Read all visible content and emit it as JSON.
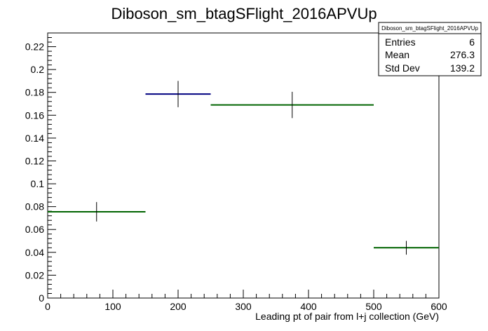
{
  "chart_data": {
    "type": "histogram",
    "title": "Diboson_sm_btagSFlight_2016APVUp",
    "xlabel": "Leading pt of pair from l+j collection (GeV)",
    "ylabel": "",
    "xlim": [
      0,
      600
    ],
    "ylim": [
      0,
      0.232
    ],
    "x_ticks": [
      0,
      100,
      200,
      300,
      400,
      500,
      600
    ],
    "y_ticks": [
      0,
      0.02,
      0.04,
      0.06,
      0.08,
      0.1,
      0.12,
      0.14,
      0.16,
      0.18,
      0.2,
      0.22
    ],
    "grid": false,
    "bins": [
      {
        "x_low": 0,
        "x_high": 150,
        "center": 75,
        "value": 0.0755,
        "error": 0.0085,
        "color": "#006400"
      },
      {
        "x_low": 150,
        "x_high": 250,
        "center": 200,
        "value": 0.1785,
        "error": 0.0115,
        "color": "#000080"
      },
      {
        "x_low": 250,
        "x_high": 500,
        "center": 375,
        "value": 0.169,
        "error": 0.0115,
        "color": "#006400"
      },
      {
        "x_low": 500,
        "x_high": 600,
        "center": 550,
        "value": 0.044,
        "error": 0.006,
        "color": "#006400"
      }
    ],
    "stats_box": {
      "title": "Diboson_sm_btagSFlight_2016APVUp",
      "rows": [
        {
          "label": "Entries",
          "value": "6"
        },
        {
          "label": "Mean",
          "value": "276.3"
        },
        {
          "label": "Std Dev",
          "value": "139.2"
        }
      ],
      "placement": "top-right"
    }
  }
}
